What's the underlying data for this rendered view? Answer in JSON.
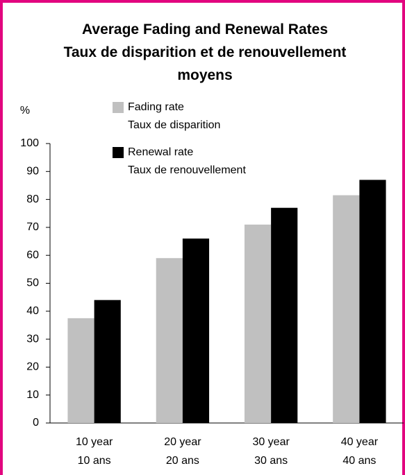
{
  "chart_data": {
    "type": "bar",
    "title": [
      "Average Fading and Renewal Rates",
      "Taux de disparition et de renouvellement moyens"
    ],
    "y_label": "%",
    "categories": [
      [
        "10 year",
        "10 ans"
      ],
      [
        "20 year",
        "20 ans"
      ],
      [
        "30 year",
        "30 ans"
      ],
      [
        "40 year",
        "40 ans"
      ]
    ],
    "series": [
      {
        "name": [
          "Fading rate",
          "Taux de disparition"
        ],
        "color": "#c0c0c0",
        "values": [
          37.5,
          59,
          71,
          81.5
        ]
      },
      {
        "name": [
          "Renewal rate",
          "Taux de renouvellement"
        ],
        "color": "#000000",
        "values": [
          44,
          66,
          77,
          87
        ]
      }
    ],
    "ylim": [
      0,
      100
    ],
    "yticks": [
      0,
      10,
      20,
      30,
      40,
      50,
      60,
      70,
      80,
      90,
      100
    ],
    "grid": false
  }
}
